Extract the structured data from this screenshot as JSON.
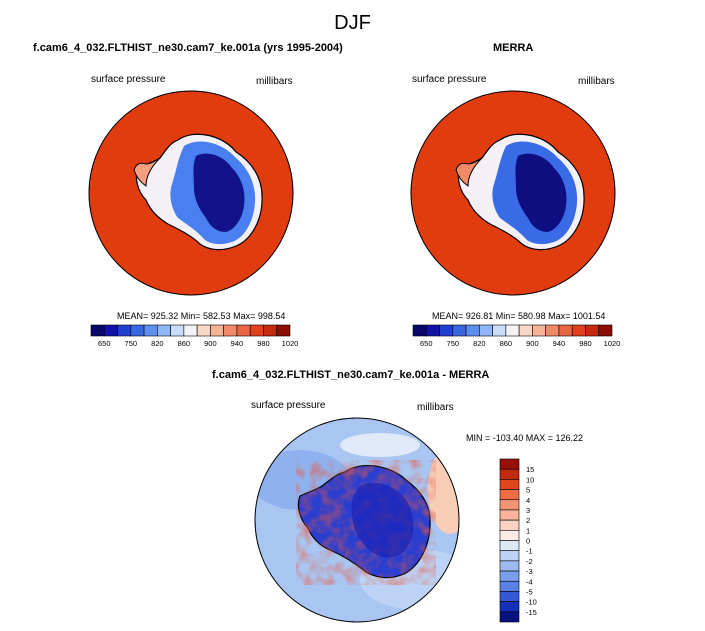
{
  "figure": {
    "title": "DJF"
  },
  "panels": {
    "model": {
      "title": "f.cam6_4_032.FLTHIST_ne30.cam7_ke.001a (yrs 1995-2004)",
      "left_label": "surface pressure",
      "right_label": "millibars",
      "stats": "MEAN= 925.32  Min= 582.53  Max= 998.54"
    },
    "obs": {
      "title": "MERRA",
      "left_label": "surface pressure",
      "right_label": "millibars",
      "stats": "MEAN= 926.81  Min= 580.98  Max= 1001.54"
    },
    "diff": {
      "title": "f.cam6_4_032.FLTHIST_ne30.cam7_ke.001a - MERRA",
      "left_label": "surface pressure",
      "right_label": "millibars",
      "stats": "MIN = -103.40 MAX = 126.22"
    }
  },
  "chart_data": [
    {
      "type": "heatmap",
      "subtype": "polar-stereographic-map",
      "title": "f.cam6_4_032.FLTHIST_ne30.cam7_ke.001a (yrs 1995-2004)",
      "variable": "surface pressure",
      "units": "millibars",
      "mean": 925.32,
      "min": 582.53,
      "max": 998.54,
      "colorbar": {
        "orientation": "horizontal",
        "tick_labels": [
          "650",
          "750",
          "820",
          "860",
          "900",
          "940",
          "980",
          "1020"
        ],
        "colors": [
          "#08086b",
          "#1111a8",
          "#1f3fd0",
          "#3a66e0",
          "#5d8ff0",
          "#8fb7f8",
          "#c9ddfa",
          "#f4f2f6",
          "#f9d7c6",
          "#f6b496",
          "#f08a68",
          "#e86444",
          "#e0401e",
          "#c42a0c",
          "#8c0d04"
        ]
      }
    },
    {
      "type": "heatmap",
      "subtype": "polar-stereographic-map",
      "title": "MERRA",
      "variable": "surface pressure",
      "units": "millibars",
      "mean": 926.81,
      "min": 580.98,
      "max": 1001.54,
      "colorbar": {
        "orientation": "horizontal",
        "tick_labels": [
          "650",
          "750",
          "820",
          "860",
          "900",
          "940",
          "980",
          "1020"
        ],
        "colors": [
          "#08086b",
          "#1111a8",
          "#1f3fd0",
          "#3a66e0",
          "#5d8ff0",
          "#8fb7f8",
          "#c9ddfa",
          "#f4f2f6",
          "#f9d7c6",
          "#f6b496",
          "#f08a68",
          "#e86444",
          "#e0401e",
          "#c42a0c",
          "#8c0d04"
        ]
      }
    },
    {
      "type": "heatmap",
      "subtype": "polar-stereographic-map",
      "title": "f.cam6_4_032.FLTHIST_ne30.cam7_ke.001a - MERRA",
      "variable": "surface pressure",
      "units": "millibars",
      "min": -103.4,
      "max": 126.22,
      "colorbar": {
        "orientation": "vertical",
        "tick_labels": [
          "15",
          "10",
          "5",
          "4",
          "3",
          "2",
          "1",
          "0",
          "-1",
          "-2",
          "-3",
          "-4",
          "-5",
          "-10",
          "-15"
        ],
        "colors": [
          "#9a0f08",
          "#c22a10",
          "#e0461e",
          "#ef6e45",
          "#f59472",
          "#f9b69c",
          "#fbd3c2",
          "#fcebe4",
          "#dde8f7",
          "#bcd2f3",
          "#9cbaf0",
          "#7a9eec",
          "#5a80e6",
          "#3558d6",
          "#1530b8",
          "#07127e"
        ]
      }
    }
  ]
}
